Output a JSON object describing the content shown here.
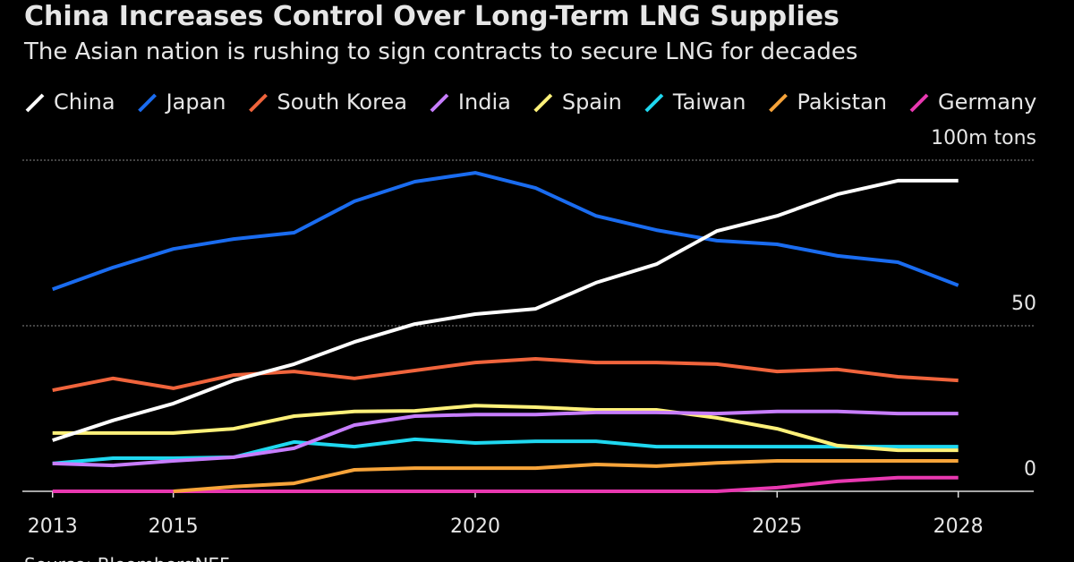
{
  "chart_data": {
    "type": "line",
    "title": "China Increases Control Over Long-Term LNG Supplies",
    "subtitle": "The Asian nation is rushing to sign contracts to secure LNG for decades",
    "source": "Source: BloombergNEF",
    "x": [
      2013,
      2014,
      2015,
      2016,
      2017,
      2018,
      2019,
      2020,
      2021,
      2022,
      2023,
      2024,
      2025,
      2026,
      2027,
      2028
    ],
    "xlim": [
      2012.5,
      2029.25
    ],
    "xticks": [
      2013,
      2015,
      2020,
      2025,
      2028
    ],
    "ylim": [
      0,
      100
    ],
    "yticks": [
      0,
      50,
      {
        "value": 100,
        "label": "100m tons"
      }
    ],
    "grid": true,
    "series": [
      {
        "name": "China",
        "color": "#ffffff",
        "values": [
          15.4,
          21.4,
          26.5,
          33.5,
          38.4,
          45.1,
          50.5,
          53.5,
          55.1,
          63,
          68.6,
          78.6,
          83.2,
          89.7,
          93.8,
          93.8
        ]
      },
      {
        "name": "Japan",
        "color": "#1a6cf0",
        "values": [
          61,
          67.6,
          73.2,
          76.2,
          78.1,
          87.6,
          93.5,
          96.2,
          91.6,
          83.2,
          78.9,
          75.7,
          74.6,
          71.1,
          69.2,
          62.2
        ]
      },
      {
        "name": "South Korea",
        "color": "#f0643c",
        "values": [
          30.5,
          34.1,
          31.1,
          35.1,
          36.2,
          34.1,
          36.5,
          38.9,
          40,
          38.9,
          38.9,
          38.4,
          36.2,
          36.8,
          34.6,
          33.5
        ]
      },
      {
        "name": "India",
        "color": "#c77dff",
        "values": [
          8.4,
          7.8,
          9.2,
          10.3,
          13,
          20,
          22.7,
          23.2,
          23.2,
          23.8,
          23.8,
          23.5,
          24.1,
          24.1,
          23.5,
          23.5
        ]
      },
      {
        "name": "Spain",
        "color": "#fff17a",
        "values": [
          17.6,
          17.6,
          17.6,
          18.9,
          22.7,
          24.1,
          24.3,
          25.9,
          25.4,
          24.6,
          24.6,
          22.2,
          18.9,
          13.8,
          12.4,
          12.4
        ]
      },
      {
        "name": "Taiwan",
        "color": "#1fd8f0",
        "values": [
          8.4,
          10,
          10,
          10.3,
          14.9,
          13.5,
          15.7,
          14.6,
          15.1,
          15.1,
          13.5,
          13.5,
          13.5,
          13.5,
          13.5,
          13.5
        ]
      },
      {
        "name": "Pakistan",
        "color": "#f7a43a",
        "values": [
          null,
          null,
          0,
          1.4,
          2.4,
          6.5,
          7,
          7,
          7,
          8.1,
          7.6,
          8.6,
          9.2,
          9.2,
          9.2,
          9.2
        ]
      },
      {
        "name": "Germany",
        "color": "#e838b0",
        "values": [
          0,
          0,
          0,
          0,
          0,
          0,
          0,
          0,
          0,
          0,
          0,
          0,
          1.1,
          3,
          4.1,
          4.1
        ]
      }
    ]
  }
}
